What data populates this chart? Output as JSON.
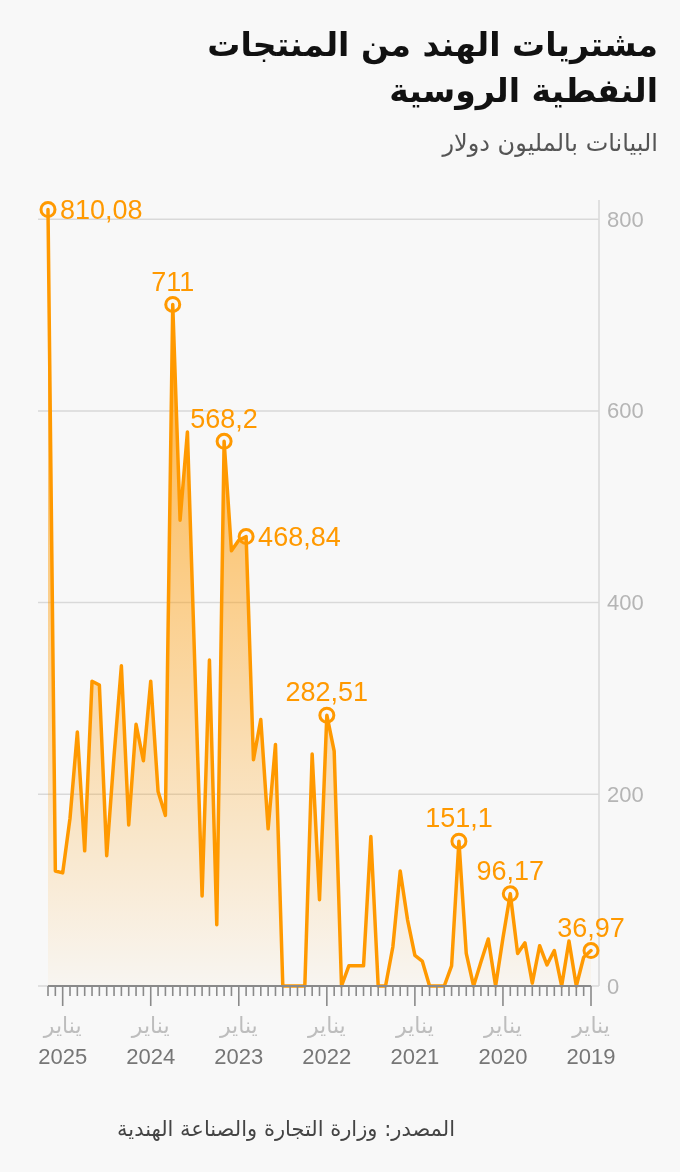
{
  "chart_data": {
    "type": "area",
    "title": "مشتريات الهند من المنتجات النفطية الروسية",
    "subtitle": "البيانات بالمليون دولار",
    "annotations": [
      "المصدر: وزارة التجارة والصناعة الهندية"
    ],
    "categories": [
      null,
      null,
      "يناير 2025",
      null,
      null,
      null,
      null,
      null,
      null,
      null,
      null,
      null,
      null,
      null,
      "يناير 2024",
      null,
      null,
      null,
      null,
      null,
      null,
      null,
      null,
      null,
      null,
      null,
      "يناير 2023",
      null,
      null,
      null,
      null,
      null,
      null,
      null,
      null,
      null,
      null,
      null,
      "يناير 2022",
      null,
      null,
      null,
      null,
      null,
      null,
      null,
      null,
      null,
      null,
      null,
      "يناير 2021",
      null,
      null,
      null,
      null,
      null,
      null,
      null,
      null,
      null,
      null,
      null,
      "يناير 2020",
      null,
      null,
      null,
      null,
      null,
      null,
      null,
      null,
      null,
      null,
      null,
      "يناير 2019"
    ],
    "series": [
      {
        "color": "#ff9900",
        "values": [
          810.08,
          120,
          118,
          175,
          265,
          141,
          318,
          314,
          136,
          240,
          334,
          168,
          273,
          235,
          318,
          203,
          178,
          711,
          486,
          578,
          336,
          94,
          340,
          64,
          568.2,
          454,
          465,
          468.84,
          236,
          278,
          164,
          252,
          0,
          0,
          0,
          0,
          242,
          90,
          282.51,
          245,
          0,
          21,
          21,
          21,
          156,
          0,
          0,
          41,
          120,
          69,
          32,
          26,
          0,
          0,
          0,
          21,
          151.1,
          34,
          0,
          25,
          49,
          0,
          50,
          96.17,
          34,
          45,
          3,
          42,
          22,
          37,
          0,
          47,
          0,
          30,
          36.97
        ]
      },
      {
        "type": "scatter",
        "color": "#ff9900",
        "marker": "circle",
        "values": [
          810.08,
          null,
          null,
          null,
          null,
          null,
          null,
          null,
          null,
          null,
          null,
          null,
          null,
          null,
          null,
          null,
          null,
          711,
          null,
          null,
          null,
          null,
          null,
          null,
          568.2,
          null,
          null,
          468.84,
          null,
          null,
          null,
          null,
          null,
          null,
          null,
          null,
          null,
          null,
          282.51,
          null,
          null,
          null,
          null,
          null,
          null,
          null,
          null,
          null,
          null,
          null,
          null,
          null,
          null,
          null,
          null,
          null,
          151.1,
          null,
          null,
          null,
          null,
          null,
          null,
          96.17,
          null,
          null,
          null,
          null,
          null,
          null,
          null,
          null,
          null,
          null,
          36.97
        ],
        "value_labels": [
          "810,08",
          null,
          null,
          null,
          null,
          null,
          null,
          null,
          null,
          null,
          null,
          null,
          null,
          null,
          null,
          null,
          null,
          "711",
          null,
          null,
          null,
          null,
          null,
          null,
          "568,2",
          null,
          null,
          "468,84",
          null,
          null,
          null,
          null,
          null,
          null,
          null,
          null,
          null,
          null,
          "282,51",
          null,
          null,
          null,
          null,
          null,
          null,
          null,
          null,
          null,
          null,
          null,
          null,
          null,
          null,
          null,
          null,
          null,
          "151,1",
          null,
          null,
          null,
          null,
          null,
          null,
          "96,17",
          null,
          null,
          null,
          null,
          null,
          null,
          null,
          null,
          null,
          null,
          "36,97"
        ]
      }
    ],
    "grid": "y",
    "ylim": [
      0,
      820
    ],
    "yticks": [
      0,
      200,
      400,
      600,
      800
    ]
  }
}
